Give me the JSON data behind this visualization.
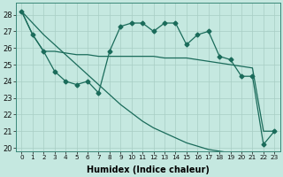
{
  "xlabel": "Humidex (Indice chaleur)",
  "xlim_min": -0.5,
  "xlim_max": 23.5,
  "ylim_min": 19.8,
  "ylim_max": 28.7,
  "yticks": [
    20,
    21,
    22,
    23,
    24,
    25,
    26,
    27,
    28
  ],
  "xticks": [
    0,
    1,
    2,
    3,
    4,
    5,
    6,
    7,
    8,
    9,
    10,
    11,
    12,
    13,
    14,
    15,
    16,
    17,
    18,
    19,
    20,
    21,
    22,
    23
  ],
  "bg_color": "#c5e8e0",
  "line_color": "#1a6b5a",
  "grid_color": "#a8cdc4",
  "line_diagonal": [
    28.2,
    27.5,
    26.8,
    26.2,
    25.6,
    25.0,
    24.4,
    23.8,
    23.2,
    22.6,
    22.1,
    21.6,
    21.2,
    20.9,
    20.6,
    20.3,
    20.1,
    19.9,
    19.8,
    19.7,
    19.6,
    19.5,
    19.4,
    19.3
  ],
  "line_middle": [
    28.2,
    26.8,
    25.8,
    25.8,
    25.7,
    25.6,
    25.6,
    25.5,
    25.5,
    25.5,
    25.5,
    25.5,
    25.5,
    25.4,
    25.4,
    25.4,
    25.3,
    25.2,
    25.1,
    25.0,
    24.9,
    24.8,
    21.0,
    21.0
  ],
  "line_wiggly": [
    28.2,
    26.8,
    25.8,
    24.6,
    24.0,
    23.8,
    24.0,
    23.3,
    25.8,
    27.3,
    27.5,
    27.5,
    27.0,
    27.5,
    27.5,
    26.2,
    26.8,
    27.0,
    25.5,
    25.3,
    24.3,
    24.3,
    20.2,
    21.0
  ]
}
